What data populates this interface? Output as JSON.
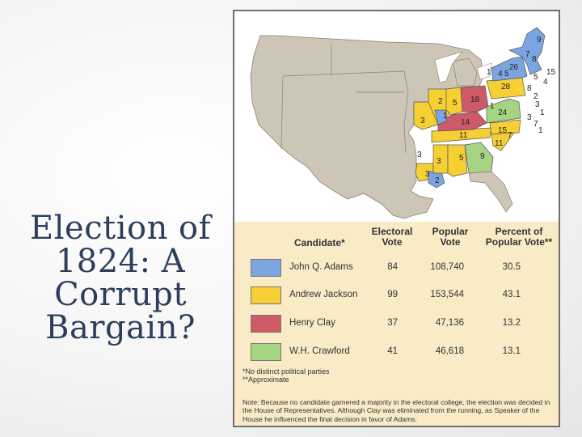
{
  "title": "Election of 1824: A Corrupt Bargain?",
  "colors": {
    "adams": "#7ba5e0",
    "jackson": "#f6cf35",
    "clay": "#cf5a67",
    "crawford": "#a6d482",
    "territory": "#cdc5b6",
    "water": "#ffffff",
    "paper": "#f8ebc6"
  },
  "map": {
    "state_vote_labels": [
      "9",
      "7",
      "8",
      "15",
      "4",
      "26",
      "5",
      "4",
      "5",
      "28",
      "1",
      "8",
      "2",
      "3",
      "1",
      "18",
      "5",
      "2",
      "7",
      "1",
      "24",
      "3",
      "3",
      "1",
      "14",
      "11",
      "15",
      "7",
      "11",
      "9",
      "3",
      "5",
      "3",
      "3",
      "2",
      "1"
    ]
  },
  "table": {
    "headers": {
      "candidate": "Candidate*",
      "electoral_line1": "Electoral",
      "electoral_line2": "Vote",
      "popular_line1": "Popular",
      "popular_line2": "Vote",
      "percent_line1": "Percent of",
      "percent_line2": "Popular Vote**"
    },
    "rows": [
      {
        "color_key": "adams",
        "candidate": "John Q. Adams",
        "electoral": "84",
        "popular": "108,740",
        "percent": "30.5"
      },
      {
        "color_key": "jackson",
        "candidate": "Andrew Jackson",
        "electoral": "99",
        "popular": "153,544",
        "percent": "43.1"
      },
      {
        "color_key": "clay",
        "candidate": "Henry Clay",
        "electoral": "37",
        "popular": "47,136",
        "percent": "13.2"
      },
      {
        "color_key": "crawford",
        "candidate": "W.H. Crawford",
        "electoral": "41",
        "popular": "46,618",
        "percent": "13.1"
      }
    ],
    "footnote1": "*No distinct political parties",
    "footnote2": "**Approximate"
  },
  "note": "Note: Because no candidate garnered a majority in the electoral college, the election was decided in the House of Representatives. Although Clay was eliminated from the running, as Speaker of the House he influenced the final decision in favor of Adams."
}
